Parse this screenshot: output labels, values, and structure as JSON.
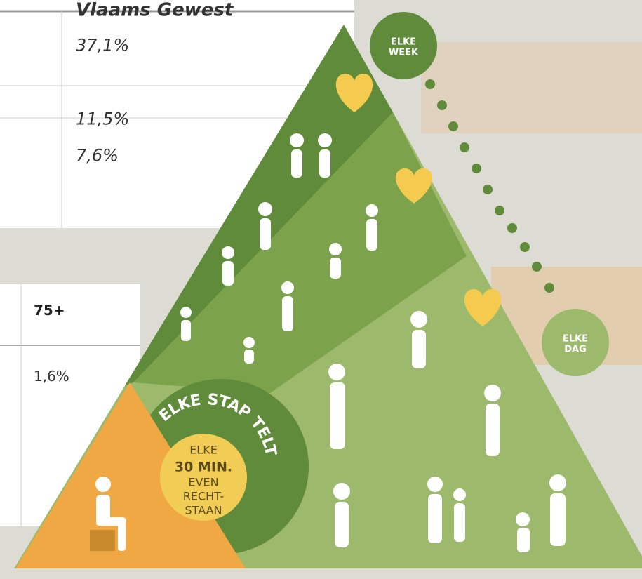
{
  "top_table": {
    "header": "Vlaams Gewest",
    "rows": [
      "37,1%",
      "11,5%",
      "7,6%"
    ]
  },
  "bottom_table": {
    "header": "75+",
    "rows": [
      "1,6%"
    ]
  },
  "pyramid": {
    "week_label": [
      "ELKE",
      "WEEK"
    ],
    "day_label": [
      "ELKE",
      "DAG"
    ],
    "ring_text": "ELKE STAP TELT",
    "center_label": [
      "ELKE",
      "30 MIN.",
      "EVEN",
      "RECHT-",
      "STAAN"
    ]
  }
}
